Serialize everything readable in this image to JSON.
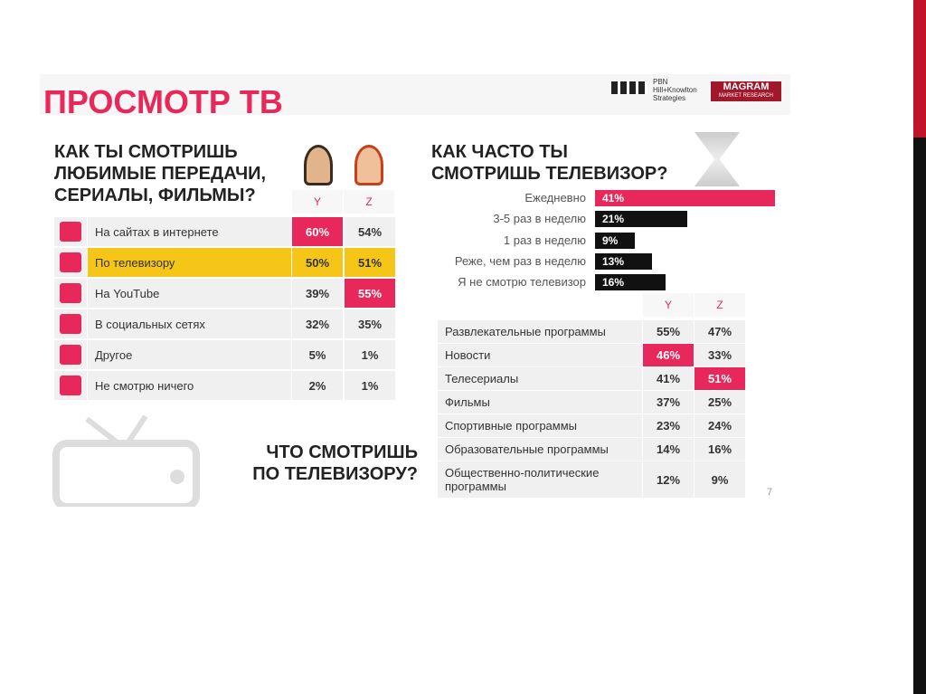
{
  "header": {
    "title": "ПРОСМОТР ТВ",
    "logo_left": [
      "PBN",
      "Hill+Knowlton",
      "Strategies"
    ],
    "logo_right": [
      "MAGRAM",
      "MARKET RESEARCH"
    ]
  },
  "left_table": {
    "question": [
      "КАК ТЫ СМОТРИШЬ",
      "ЛЮБИМЫЕ ПЕРЕДАЧИ,",
      "СЕРИАЛЫ, ФИЛЬМЫ?"
    ],
    "columns": [
      "Y",
      "Z"
    ],
    "rows": [
      [
        "На сайтах в интернете",
        "60%",
        "54%"
      ],
      [
        "По телевизору",
        "50%",
        "51%"
      ],
      [
        "На YouTube",
        "39%",
        "55%"
      ],
      [
        "В социальных сетях",
        "32%",
        "35%"
      ],
      [
        "Другое",
        "5%",
        "1%"
      ],
      [
        "Не смотрю ничего",
        "2%",
        "1%"
      ]
    ]
  },
  "chart_data": {
    "type": "bar",
    "orientation": "horizontal",
    "title": [
      "КАК ЧАСТО ТЫ",
      "СМОТРИШЬ ТЕЛЕВИЗОР?"
    ],
    "categories": [
      "Ежедневно",
      "3-5 раз в неделю",
      "1 раз в неделю",
      "Реже, чем раз в неделю",
      "Я не смотрю телевизор"
    ],
    "values": [
      41,
      21,
      9,
      13,
      16
    ],
    "value_labels": [
      "41%",
      "21%",
      "9%",
      "13%",
      "16%"
    ],
    "colors": [
      "#e8285a",
      "#111111",
      "#111111",
      "#111111",
      "#111111"
    ]
  },
  "bottom_table": {
    "question": [
      "ЧТО СМОТРИШЬ",
      "ПО ТЕЛЕВИЗОРУ?"
    ],
    "columns": [
      "Y",
      "Z"
    ],
    "rows": [
      [
        "Развлекательные программы",
        "55%",
        "47%"
      ],
      [
        "Новости",
        "46%",
        "33%"
      ],
      [
        "Телесериалы",
        "41%",
        "51%"
      ],
      [
        "Фильмы",
        "37%",
        "25%"
      ],
      [
        "Спортивные программы",
        "23%",
        "24%"
      ],
      [
        "Образовательные программы",
        "14%",
        "16%"
      ],
      [
        "Общественно-политические программы",
        "12%",
        "9%"
      ]
    ]
  },
  "page_number": "7"
}
